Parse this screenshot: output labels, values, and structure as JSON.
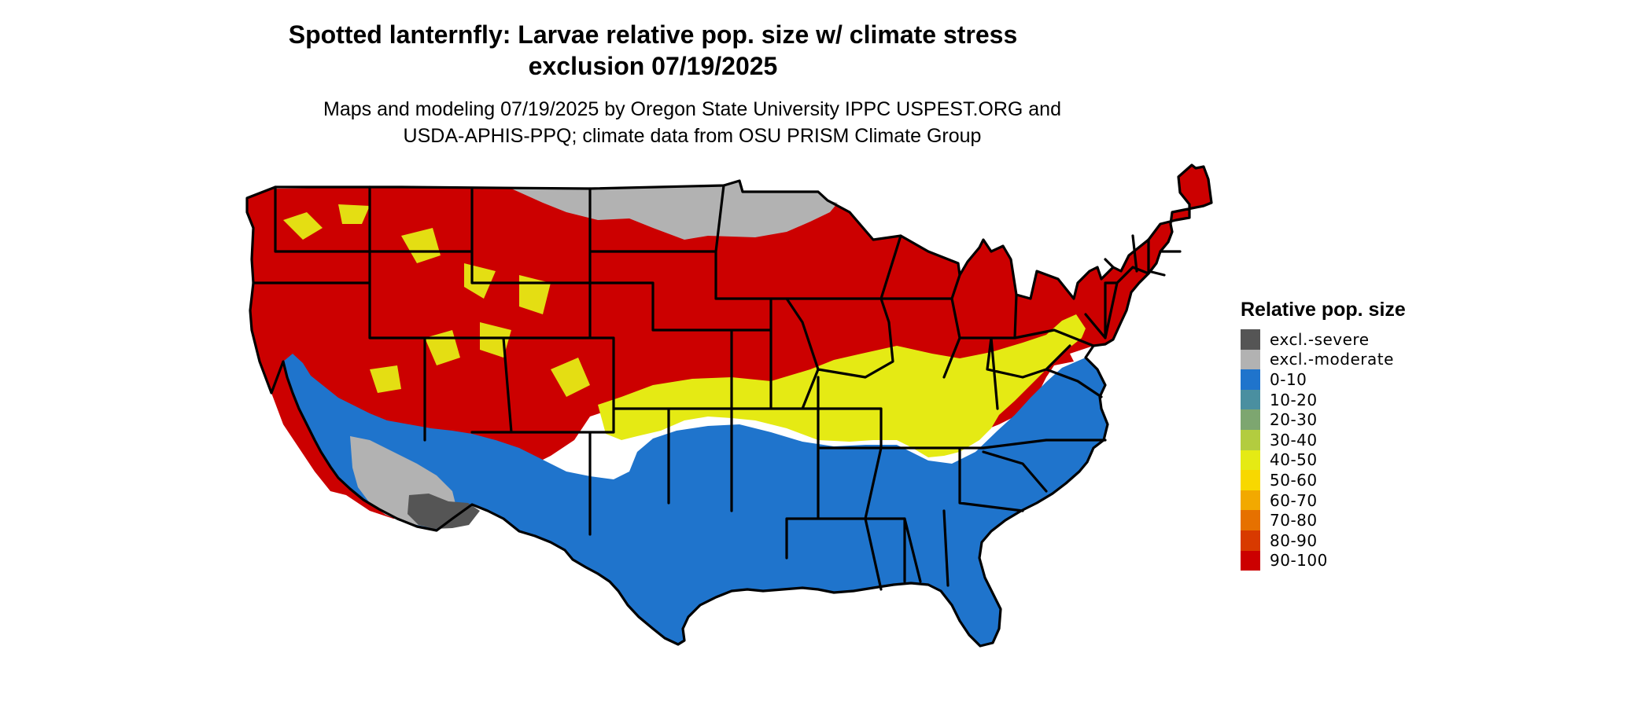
{
  "header": {
    "title_line1": "Spotted lanternfly: Larvae relative pop. size w/ climate stress",
    "title_line2": "exclusion 07/19/2025",
    "subtitle_line1": "Maps and modeling 07/19/2025 by Oregon State University IPPC USPEST.ORG and",
    "subtitle_line2": "USDA-APHIS-PPQ; climate data from OSU PRISM Climate Group"
  },
  "legend": {
    "title": "Relative pop. size",
    "items": [
      {
        "label": "excl.-severe",
        "color": "#555555"
      },
      {
        "label": "excl.-moderate",
        "color": "#b2b2b2"
      },
      {
        "label": "0-10",
        "color": "#1f74cc"
      },
      {
        "label": "10-20",
        "color": "#4a8fa0"
      },
      {
        "label": "20-30",
        "color": "#7da670"
      },
      {
        "label": "30-40",
        "color": "#b3cc3f"
      },
      {
        "label": "40-50",
        "color": "#e5ea14"
      },
      {
        "label": "50-60",
        "color": "#f8d800"
      },
      {
        "label": "60-70",
        "color": "#f2a900"
      },
      {
        "label": "70-80",
        "color": "#e67100"
      },
      {
        "label": "80-90",
        "color": "#d83a00"
      },
      {
        "label": "90-100",
        "color": "#cc0000"
      }
    ]
  },
  "map": {
    "land_colors": {
      "high": "#cc0000",
      "low": "#1f74cc",
      "moderate_exclusion": "#b2b2b2",
      "severe_exclusion": "#555555",
      "transition": "#e5ea14",
      "border": "#000000"
    }
  }
}
